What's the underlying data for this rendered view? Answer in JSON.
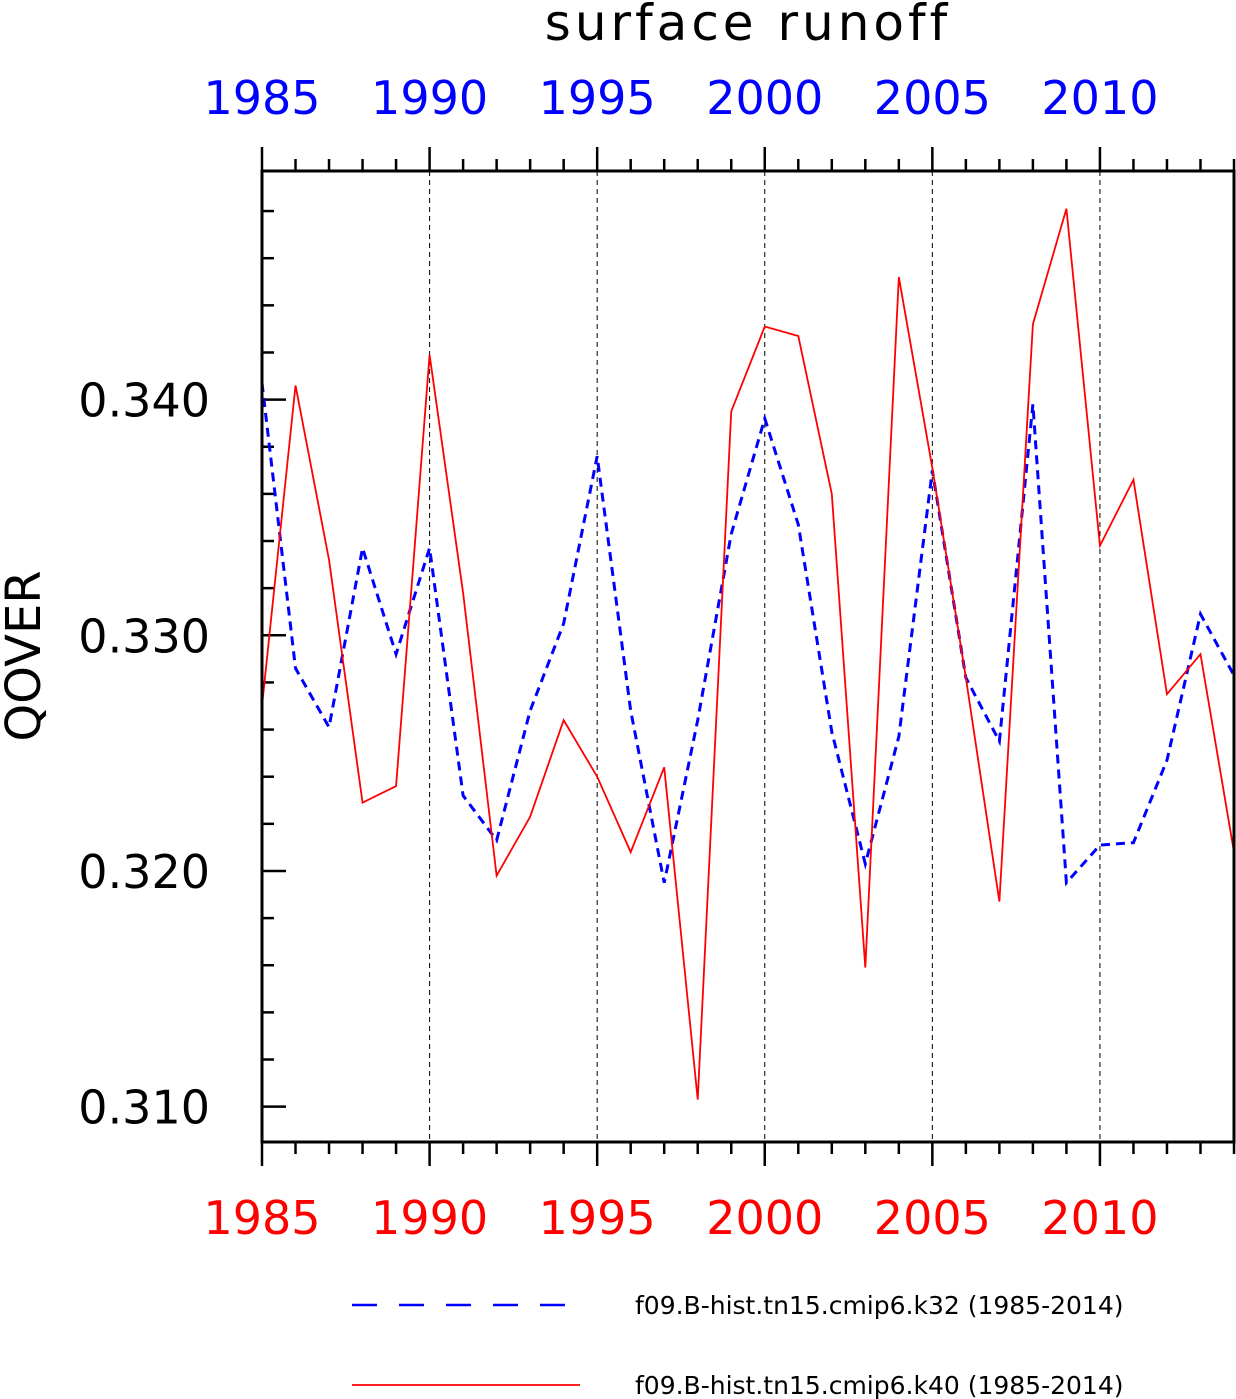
{
  "chart_data": {
    "type": "line",
    "title": "surface runoff",
    "ylabel": "QOVER",
    "xlabel": "",
    "xlim": [
      1985,
      2014
    ],
    "ylim": [
      0.3085,
      0.3497
    ],
    "x_ticks": [
      1985,
      1990,
      1995,
      2000,
      2005,
      2010
    ],
    "x_tick_labels": [
      "1985",
      "1990",
      "1995",
      "2000",
      "2005",
      "2010"
    ],
    "y_ticks": [
      0.31,
      0.32,
      0.33,
      0.34
    ],
    "y_tick_labels": [
      "0.310",
      "0.320",
      "0.330",
      "0.340"
    ],
    "top_axis_color": "#0000ff",
    "bottom_axis_color": "#ff0000",
    "vertical_grid": true,
    "legend_position": "bottom",
    "x": [
      1985,
      1986,
      1987,
      1988,
      1989,
      1990,
      1991,
      1992,
      1993,
      1994,
      1995,
      1996,
      1997,
      1998,
      1999,
      2000,
      2001,
      2002,
      2003,
      2004,
      2005,
      2006,
      2007,
      2008,
      2009,
      2010,
      2011,
      2012,
      2013,
      2014
    ],
    "series": [
      {
        "name": "f09.B-hist.tn15.cmip6.k32 (1985-2014)",
        "color": "#0000ff",
        "dash": "dashed",
        "values": [
          0.3407,
          0.3286,
          0.3261,
          0.3337,
          0.3292,
          0.3337,
          0.3232,
          0.3213,
          0.3268,
          0.3305,
          0.3376,
          0.3268,
          0.3195,
          0.3264,
          0.3343,
          0.3392,
          0.3347,
          0.3259,
          0.3203,
          0.3257,
          0.337,
          0.3282,
          0.3255,
          0.3398,
          0.3195,
          0.3211,
          0.3212,
          0.3247,
          0.3309,
          0.3283
        ]
      },
      {
        "name": "f09.B-hist.tn15.cmip6.k40 (1985-2014)",
        "color": "#ff0000",
        "dash": "solid",
        "values": [
          0.327,
          0.3406,
          0.3332,
          0.3229,
          0.3236,
          0.3419,
          0.3318,
          0.3198,
          0.3223,
          0.3264,
          0.324,
          0.3208,
          0.3244,
          0.3103,
          0.3395,
          0.3431,
          0.3427,
          0.336,
          0.3159,
          0.3452,
          0.3371,
          0.3282,
          0.3187,
          0.3432,
          0.3481,
          0.3338,
          0.3366,
          0.3275,
          0.3292,
          0.3208
        ]
      }
    ]
  }
}
